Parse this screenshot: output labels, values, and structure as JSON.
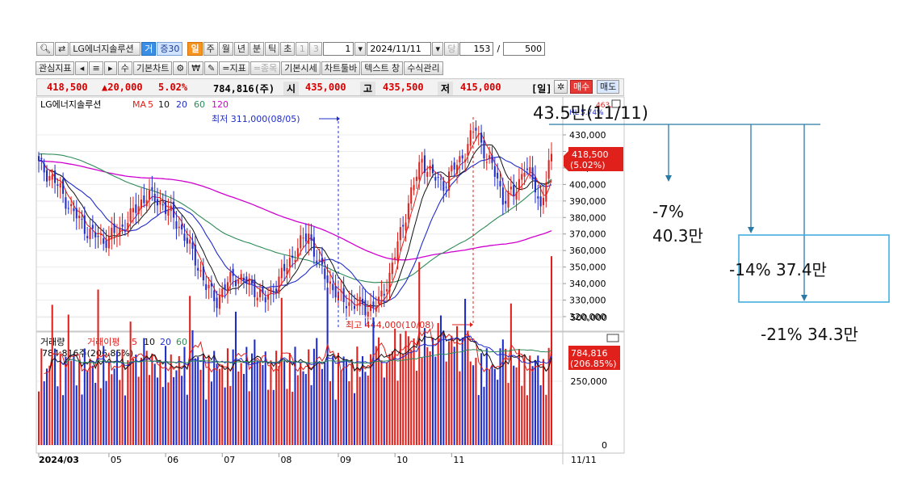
{
  "toolbar": {
    "stock_name": "LG에너지솔루션",
    "tag1": "거",
    "tag2": "증30",
    "periods": [
      "일",
      "주",
      "월",
      "년",
      "분",
      "틱",
      "초"
    ],
    "n1": "1",
    "n3": "3",
    "interval_value": "1",
    "date_value": "2024/11/11",
    "day_label": "당",
    "count_value": "153",
    "slash": "/",
    "total_value": "500",
    "row2": [
      "관심지표",
      "기본차트",
      "=지표",
      "=종목",
      "기본시세",
      "차트툴바",
      "텍스트 창",
      "수식관리"
    ],
    "su": "수",
    "won": "₩"
  },
  "quote": {
    "price": "418,500",
    "change": "▲20,000",
    "pct": "5.02%",
    "volume": "784,816(주)",
    "open_label": "시",
    "open": "435,000",
    "high_label": "고",
    "high": "435,500",
    "low_label": "저",
    "low": "415,000",
    "period_label": "[일]",
    "buy": "매수",
    "sell": "매도"
  },
  "price_panel": {
    "legend_name": "LG에너지솔루션",
    "legend_ma": "MA",
    "ma_periods": [
      "5",
      "10",
      "20",
      "60",
      "120"
    ],
    "low_label": "최저 311,000(08/05)",
    "high_label": "최고 444,000(10/08)",
    "top_label_a": "HL",
    "top_label_b": "5.74%",
    "top_label_c": "463.5",
    "current_tag": "418,500",
    "current_pct": "(5.02%)"
  },
  "volume_panel": {
    "legend_name": "거래량",
    "legend_ma": "거래이평",
    "ma_periods": [
      "5",
      "10",
      "20",
      "60"
    ],
    "current": "784,816주(206.85%)",
    "tag_value": "784,816",
    "tag_pct": "(206.85%)"
  },
  "chart_data": [
    {
      "type": "candlestick",
      "title": "LG에너지솔루션",
      "x_labels": [
        "2024/03",
        "05",
        "06",
        "07",
        "08",
        "09",
        "10",
        "11"
      ],
      "y_ticks": [
        320000,
        330000,
        340000,
        350000,
        360000,
        370000,
        380000,
        390000,
        400000,
        410000,
        420000,
        430000
      ],
      "ylim": [
        313000,
        442000
      ],
      "moving_averages": [
        "5",
        "10",
        "20",
        "60",
        "120"
      ],
      "low_marker": {
        "label": "최저 311,000(08/05)",
        "value": 311000
      },
      "high_marker": {
        "label": "최고 444,000(10/08)",
        "value": 444000
      },
      "last": {
        "close": 418500,
        "change_pct": 5.02
      },
      "approx_path": [
        [
          0,
          412000
        ],
        [
          6,
          402000
        ],
        [
          12,
          385000
        ],
        [
          18,
          372000
        ],
        [
          24,
          366000
        ],
        [
          30,
          372000
        ],
        [
          36,
          385000
        ],
        [
          40,
          394000
        ],
        [
          46,
          388000
        ],
        [
          52,
          375000
        ],
        [
          58,
          355000
        ],
        [
          62,
          338000
        ],
        [
          66,
          330000
        ],
        [
          72,
          345000
        ],
        [
          78,
          340000
        ],
        [
          84,
          330000
        ],
        [
          90,
          345000
        ],
        [
          96,
          362000
        ],
        [
          100,
          370000
        ],
        [
          104,
          350000
        ],
        [
          108,
          340000
        ],
        [
          112,
          330000
        ],
        [
          118,
          327000
        ],
        [
          122,
          325000
        ],
        [
          126,
          328000
        ],
        [
          130,
          345000
        ],
        [
          134,
          370000
        ],
        [
          138,
          395000
        ],
        [
          142,
          415000
        ],
        [
          146,
          405000
        ],
        [
          150,
          400000
        ],
        [
          154,
          410000
        ],
        [
          158,
          420000
        ],
        [
          162,
          435000
        ],
        [
          166,
          415000
        ],
        [
          170,
          405000
        ],
        [
          172,
          390000
        ],
        [
          176,
          395000
        ],
        [
          180,
          410000
        ],
        [
          184,
          400000
        ],
        [
          186,
          385000
        ],
        [
          190,
          418500
        ]
      ]
    },
    {
      "type": "bar",
      "title": "거래량",
      "y_ticks": [
        0,
        250000,
        500000
      ],
      "ylim": [
        0,
        800000
      ],
      "moving_averages": [
        "5",
        "10",
        "20",
        "60"
      ],
      "last_value": 784816,
      "last_pct": 206.85
    }
  ],
  "annotations": {
    "top": "43.5만(11/11)",
    "pct7": "-7%",
    "v7": "40.3만",
    "pct14": "-14% 37.4만",
    "pct21": "-21% 34.3만"
  },
  "colors": {
    "up": "#e0201b",
    "down": "#1f2ccc",
    "ma5": "#e0201b",
    "ma10": "#111111",
    "ma20": "#1f2ccc",
    "ma60": "#2e8b57",
    "ma120": "#d000d0",
    "annot_line": "#2a7aa8",
    "box": "#37a9de"
  }
}
